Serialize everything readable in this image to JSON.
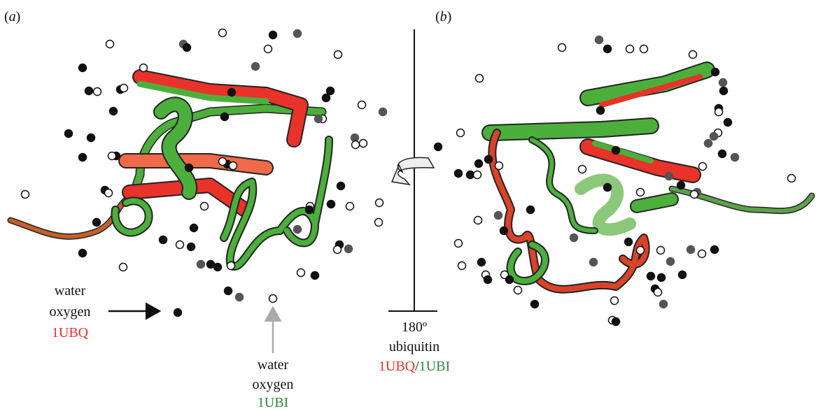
{
  "panel_a": {
    "label_open": "(",
    "label_letter": "a",
    "label_close": ")"
  },
  "panel_b": {
    "label_open": "(",
    "label_letter": "b",
    "label_close": ")"
  },
  "legend_1UBQ": {
    "line1": "water",
    "line2": "oxygen",
    "line3": "1UBQ"
  },
  "legend_1UBI": {
    "line1": "water",
    "line2": "oxygen",
    "line3": "1UBI"
  },
  "rotation": {
    "angle": "180º",
    "protein": "ubiquitin",
    "id_red": "1UBQ",
    "separator": "/",
    "id_green": "1UBI"
  }
}
